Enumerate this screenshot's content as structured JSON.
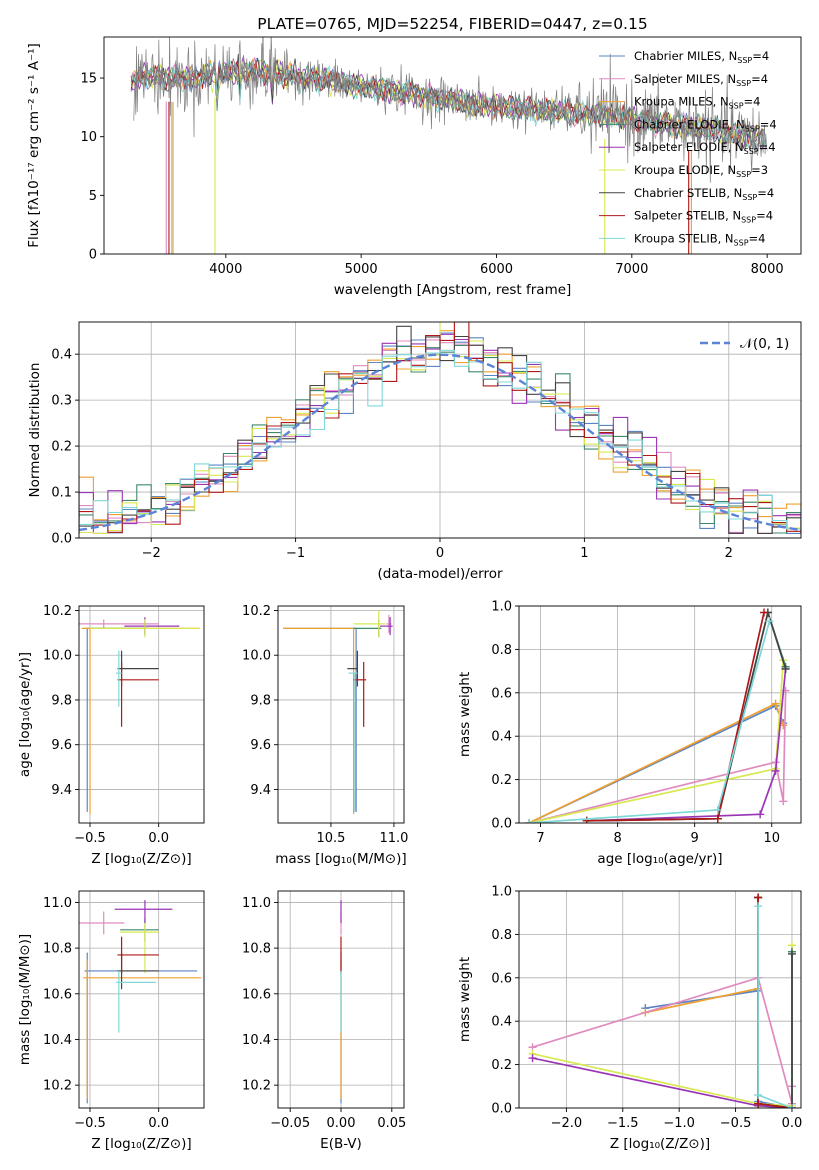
{
  "chart_data": [
    {
      "id": "spectrum",
      "type": "line",
      "title": "PLATE=0765, MJD=52254, FIBERID=0447, z=0.15",
      "xlabel": "wavelength [Angstrom, rest frame]",
      "ylabel": "Flux [fλ10⁻¹⁷ erg cm⁻² s⁻¹ A⁻¹]",
      "xlim": [
        3100,
        8250
      ],
      "ylim": [
        0,
        18.5
      ],
      "xticks": [
        4000,
        5000,
        6000,
        7000,
        8000
      ],
      "yticks": [
        0,
        5,
        10,
        15
      ],
      "grid": false,
      "legend_position": "top-right",
      "continuum": {
        "x": [
          3300,
          3400,
          3550,
          3700,
          3900,
          4100,
          4300,
          4500,
          4800,
          5000,
          5300,
          5600,
          5900,
          6200,
          6500,
          6800,
          7100,
          7400,
          7700,
          8000
        ],
        "y": [
          14.5,
          15.2,
          15.0,
          14.9,
          15.3,
          15.6,
          15.5,
          15.2,
          14.7,
          14.3,
          13.8,
          13.2,
          12.7,
          12.4,
          12.1,
          11.8,
          11.3,
          10.9,
          10.3,
          9.7
        ]
      },
      "series": [
        {
          "name": "Chabrier MILES, N",
          "sub": "SSP",
          "suffix": "=4",
          "color": "#5b84c4"
        },
        {
          "name": "Salpeter MILES, N",
          "sub": "SSP",
          "suffix": "=4",
          "color": "#e08bc0"
        },
        {
          "name": "Kroupa MILES, N",
          "sub": "SSP",
          "suffix": "=4",
          "color": "#f0a030"
        },
        {
          "name": "Chabrier ELODIE, N",
          "sub": "SSP",
          "suffix": "=4",
          "color": "#3d8a6a"
        },
        {
          "name": "Salpeter ELODIE, N",
          "sub": "SSP",
          "suffix": "=4",
          "color": "#9a35b5"
        },
        {
          "name": "Kroupa ELODIE, N",
          "sub": "SSP",
          "suffix": "=3",
          "color": "#d8e850"
        },
        {
          "name": "Chabrier STELIB, N",
          "sub": "SSP",
          "suffix": "=4",
          "color": "#444444"
        },
        {
          "name": "Salpeter STELIB, N",
          "sub": "SSP",
          "suffix": "=4",
          "color": "#b01818"
        },
        {
          "name": "Kroupa STELIB, N",
          "sub": "SSP",
          "suffix": "=4",
          "color": "#80d8d8"
        }
      ],
      "data_color": "#808080"
    },
    {
      "id": "residuals",
      "type": "histogram",
      "xlabel": "(data-model)/error",
      "ylabel": "Normed distribution",
      "xlim": [
        -2.5,
        2.5
      ],
      "ylim": [
        0,
        0.47
      ],
      "xticks": [
        -2,
        -1,
        0,
        1,
        2
      ],
      "yticks": [
        0.0,
        0.1,
        0.2,
        0.3,
        0.4
      ],
      "grid": true,
      "bin_width": 0.1,
      "legend_position": "top-right",
      "reference_curve": {
        "name": "𝒩(0, 1)",
        "color": "#5b84d8",
        "style": "dashed"
      }
    },
    {
      "id": "age-vs-Z",
      "type": "errorbar",
      "xlabel": "Z [log₁₀(Z/Z⊙)]",
      "ylabel": "age  [log₁₀(age/yr)]",
      "xlim": [
        -0.58,
        0.33
      ],
      "ylim": [
        9.25,
        10.22
      ],
      "xticks": [
        -0.5,
        0.0
      ],
      "yticks": [
        9.4,
        9.6,
        9.8,
        10.0,
        10.2
      ],
      "grid": true,
      "points": [
        {
          "x": -0.52,
          "y": 10.12,
          "xerr": [
            0.02,
            0.02
          ],
          "yerr": [
            0.82,
            0.0
          ],
          "color": "#5b84c4"
        },
        {
          "x": -0.4,
          "y": 10.14,
          "xerr": [
            0.18,
            0.4
          ],
          "yerr": [
            0.02,
            0.02
          ],
          "color": "#e08bc0"
        },
        {
          "x": -0.5,
          "y": 10.12,
          "xerr": [
            0.06,
            0.8
          ],
          "yerr": [
            0.83,
            0.0
          ],
          "color": "#f0a030"
        },
        {
          "x": -0.1,
          "y": 10.12,
          "xerr": [
            0.4,
            0.02
          ],
          "yerr": [
            0.03,
            0.03
          ],
          "color": "#3d8a6a"
        },
        {
          "x": -0.1,
          "y": 10.13,
          "xerr": [
            0.15,
            0.25
          ],
          "yerr": [
            0.04,
            0.04
          ],
          "color": "#9a35b5"
        },
        {
          "x": -0.1,
          "y": 10.12,
          "xerr": [
            0.4,
            0.4
          ],
          "yerr": [
            0.04,
            0.04
          ],
          "color": "#d8e850"
        },
        {
          "x": -0.27,
          "y": 9.94,
          "xerr": [
            0.03,
            0.27
          ],
          "yerr": [
            0.08,
            0.08
          ],
          "color": "#444444"
        },
        {
          "x": -0.27,
          "y": 9.89,
          "xerr": [
            0.03,
            0.27
          ],
          "yerr": [
            0.21,
            0.08
          ],
          "color": "#b01818"
        },
        {
          "x": -0.29,
          "y": 9.92,
          "xerr": [
            0.02,
            0.02
          ],
          "yerr": [
            0.15,
            0.1
          ],
          "color": "#80d8d8"
        }
      ]
    },
    {
      "id": "age-vs-mass",
      "type": "errorbar",
      "xlabel": "mass [log₁₀(M/M⊙)]",
      "ylabel": "",
      "xlim": [
        10.08,
        11.08
      ],
      "ylim": [
        9.25,
        10.22
      ],
      "xticks": [
        10.5,
        11.0
      ],
      "yticks": [
        9.4,
        9.6,
        9.8,
        10.0,
        10.2
      ],
      "grid": true,
      "points": [
        {
          "x": 10.7,
          "y": 10.12,
          "xerr": [
            0.58,
            0.0
          ],
          "yerr": [
            0.82,
            0.0
          ],
          "color": "#5b84c4"
        },
        {
          "x": 10.96,
          "y": 10.14,
          "xerr": [
            0.02,
            0.02
          ],
          "yerr": [
            0.04,
            0.04
          ],
          "color": "#e08bc0"
        },
        {
          "x": 10.68,
          "y": 10.12,
          "xerr": [
            0.56,
            0.0
          ],
          "yerr": [
            0.83,
            0.0
          ],
          "color": "#f0a030"
        },
        {
          "x": 10.88,
          "y": 10.12,
          "xerr": [
            0.2,
            0.02
          ],
          "yerr": [
            0.04,
            0.04
          ],
          "color": "#3d8a6a"
        },
        {
          "x": 10.97,
          "y": 10.13,
          "xerr": [
            0.08,
            0.02
          ],
          "yerr": [
            0.04,
            0.04
          ],
          "color": "#9a35b5"
        },
        {
          "x": 10.88,
          "y": 10.14,
          "xerr": [
            0.2,
            0.05
          ],
          "yerr": [
            0.06,
            0.06
          ],
          "color": "#d8e850"
        },
        {
          "x": 10.71,
          "y": 9.94,
          "xerr": [
            0.08,
            0.0
          ],
          "yerr": [
            0.08,
            0.08
          ],
          "color": "#444444"
        },
        {
          "x": 10.76,
          "y": 9.89,
          "xerr": [
            0.08,
            0.02
          ],
          "yerr": [
            0.21,
            0.08
          ],
          "color": "#b01818"
        },
        {
          "x": 10.69,
          "y": 9.92,
          "xerr": [
            0.05,
            0.02
          ],
          "yerr": [
            0.62,
            0.0
          ],
          "color": "#80d8d8"
        }
      ]
    },
    {
      "id": "weight-vs-age",
      "type": "line",
      "xlabel": "age  [log₁₀(age/yr)]",
      "ylabel": "mass weight",
      "xlim": [
        6.72,
        10.38
      ],
      "ylim": [
        0,
        1.0
      ],
      "xticks": [
        7,
        8,
        9,
        10
      ],
      "yticks": [
        0.0,
        0.2,
        0.4,
        0.6,
        0.8,
        1.0
      ],
      "grid": true,
      "series": [
        {
          "color": "#5b84c4",
          "x": [
            6.85,
            10.05,
            10.15
          ],
          "y": [
            0.0,
            0.54,
            0.46
          ]
        },
        {
          "color": "#f0a030",
          "x": [
            6.85,
            10.05,
            10.15
          ],
          "y": [
            0.0,
            0.55,
            0.45
          ]
        },
        {
          "color": "#e08bc0",
          "x": [
            6.85,
            10.05,
            10.15,
            10.18
          ],
          "y": [
            0.0,
            0.28,
            0.1,
            0.61
          ]
        },
        {
          "color": "#d8e850",
          "x": [
            6.85,
            10.05,
            10.15
          ],
          "y": [
            0.0,
            0.25,
            0.75
          ]
        },
        {
          "color": "#9a35b5",
          "x": [
            7.6,
            9.85,
            10.05,
            10.18
          ],
          "y": [
            0.01,
            0.04,
            0.24,
            0.71
          ]
        },
        {
          "color": "#3d8a6a",
          "x": [
            7.6,
            9.3,
            9.95,
            10.18
          ],
          "y": [
            0.01,
            0.02,
            0.97,
            0.72
          ]
        },
        {
          "color": "#444444",
          "x": [
            7.6,
            9.3,
            9.95,
            10.18
          ],
          "y": [
            0.01,
            0.02,
            0.97,
            0.71
          ]
        },
        {
          "color": "#b01818",
          "x": [
            7.6,
            9.3,
            9.9
          ],
          "y": [
            0.01,
            0.02,
            0.97
          ]
        },
        {
          "color": "#80d8d8",
          "x": [
            6.85,
            9.3,
            9.97
          ],
          "y": [
            0.0,
            0.06,
            0.93
          ]
        }
      ]
    },
    {
      "id": "mass-vs-Z",
      "type": "errorbar",
      "xlabel": "Z [log₁₀(Z/Z⊙)]",
      "ylabel": "mass [log₁₀(M/M⊙)]",
      "xlim": [
        -0.58,
        0.33
      ],
      "ylim": [
        10.1,
        11.05
      ],
      "xticks": [
        -0.5,
        0.0
      ],
      "yticks": [
        10.2,
        10.4,
        10.6,
        10.8,
        11.0
      ],
      "grid": true,
      "points": [
        {
          "x": -0.52,
          "y": 10.7,
          "xerr": [
            0.02,
            0.8
          ],
          "yerr": [
            0.58,
            0.08
          ],
          "color": "#5b84c4"
        },
        {
          "x": -0.4,
          "y": 10.91,
          "xerr": [
            0.18,
            0.15
          ],
          "yerr": [
            0.05,
            0.05
          ],
          "color": "#e08bc0"
        },
        {
          "x": -0.52,
          "y": 10.67,
          "xerr": [
            0.03,
            0.83
          ],
          "yerr": [
            0.53,
            0.08
          ],
          "color": "#f0a030"
        },
        {
          "x": -0.1,
          "y": 10.88,
          "xerr": [
            0.18,
            0.1
          ],
          "yerr": [
            0.05,
            0.05
          ],
          "color": "#3d8a6a"
        },
        {
          "x": -0.1,
          "y": 10.97,
          "xerr": [
            0.22,
            0.2
          ],
          "yerr": [
            0.06,
            0.04
          ],
          "color": "#9a35b5"
        },
        {
          "x": -0.1,
          "y": 10.87,
          "xerr": [
            0.18,
            0.1
          ],
          "yerr": [
            0.18,
            0.04
          ],
          "color": "#d8e850"
        },
        {
          "x": -0.27,
          "y": 10.7,
          "xerr": [
            0.03,
            0.27
          ],
          "yerr": [
            0.08,
            0.08
          ],
          "color": "#444444"
        },
        {
          "x": -0.27,
          "y": 10.77,
          "xerr": [
            0.03,
            0.27
          ],
          "yerr": [
            0.08,
            0.08
          ],
          "color": "#b01818"
        },
        {
          "x": -0.29,
          "y": 10.65,
          "xerr": [
            0.02,
            0.27
          ],
          "yerr": [
            0.22,
            0.05
          ],
          "color": "#80d8d8"
        }
      ]
    },
    {
      "id": "mass-vs-ebv",
      "type": "errorbar",
      "xlabel": "E(B-V)",
      "ylabel": "",
      "xlim": [
        -0.062,
        0.062
      ],
      "ylim": [
        10.1,
        11.05
      ],
      "xticks": [
        -0.05,
        0.0,
        0.05
      ],
      "yticks": [
        10.2,
        10.4,
        10.6,
        10.8,
        11.0
      ],
      "grid": true,
      "points": [
        {
          "x": 0.0,
          "y": 10.7,
          "xerr": [
            0.0,
            0.0
          ],
          "yerr": [
            0.58,
            0.08
          ],
          "color": "#5b84c4"
        },
        {
          "x": 0.0,
          "y": 10.91,
          "xerr": [
            0.0,
            0.0
          ],
          "yerr": [
            0.05,
            0.05
          ],
          "color": "#e08bc0"
        },
        {
          "x": 0.0,
          "y": 10.67,
          "xerr": [
            0.0,
            0.0
          ],
          "yerr": [
            0.53,
            0.08
          ],
          "color": "#f0a030"
        },
        {
          "x": 0.0,
          "y": 10.97,
          "xerr": [
            0.0,
            0.0
          ],
          "yerr": [
            0.06,
            0.04
          ],
          "color": "#9a35b5"
        },
        {
          "x": 0.0,
          "y": 10.77,
          "xerr": [
            0.0,
            0.0
          ],
          "yerr": [
            0.08,
            0.08
          ],
          "color": "#b01818"
        },
        {
          "x": 0.0,
          "y": 10.65,
          "xerr": [
            0.0,
            0.0
          ],
          "yerr": [
            0.22,
            0.05
          ],
          "color": "#80d8d8"
        }
      ]
    },
    {
      "id": "weight-vs-Z",
      "type": "line",
      "xlabel": "Z [log₁₀(Z/Z⊙)]",
      "ylabel": "mass weight",
      "xlim": [
        -2.42,
        0.08
      ],
      "ylim": [
        0,
        1.0
      ],
      "xticks": [
        -2.0,
        -1.5,
        -1.0,
        -0.5,
        0.0
      ],
      "yticks": [
        0.0,
        0.2,
        0.4,
        0.6,
        0.8,
        1.0
      ],
      "grid": true,
      "series": [
        {
          "color": "#5b84c4",
          "x": [
            -1.3,
            -0.3,
            -0.3,
            0.0
          ],
          "y": [
            0.46,
            0.54,
            0.03,
            0.0
          ]
        },
        {
          "color": "#f0a030",
          "x": [
            -1.3,
            -0.3,
            -0.3,
            0.0
          ],
          "y": [
            0.44,
            0.55,
            0.02,
            0.0
          ]
        },
        {
          "color": "#e08bc0",
          "x": [
            -2.3,
            -0.3,
            0.0,
            0.0
          ],
          "y": [
            0.28,
            0.6,
            0.02,
            0.1
          ]
        },
        {
          "color": "#d8e850",
          "x": [
            -2.3,
            -0.3,
            0.0,
            0.0
          ],
          "y": [
            0.25,
            0.02,
            0.01,
            0.75
          ]
        },
        {
          "color": "#9a35b5",
          "x": [
            -2.3,
            -0.3,
            0.0
          ],
          "y": [
            0.23,
            0.01,
            0.0
          ]
        },
        {
          "color": "#3d8a6a",
          "x": [
            -0.3,
            -0.3,
            0.0,
            0.0
          ],
          "y": [
            0.97,
            0.02,
            0.0,
            0.72
          ]
        },
        {
          "color": "#444444",
          "x": [
            -0.3,
            -0.3,
            0.0,
            0.0
          ],
          "y": [
            0.97,
            0.02,
            0.0,
            0.71
          ]
        },
        {
          "color": "#b01818",
          "x": [
            -0.3,
            -0.3,
            0.0
          ],
          "y": [
            0.97,
            0.02,
            0.0
          ]
        },
        {
          "color": "#80d8d8",
          "x": [
            -0.3,
            -0.3,
            0.0
          ],
          "y": [
            0.93,
            0.06,
            0.0
          ]
        }
      ]
    }
  ]
}
